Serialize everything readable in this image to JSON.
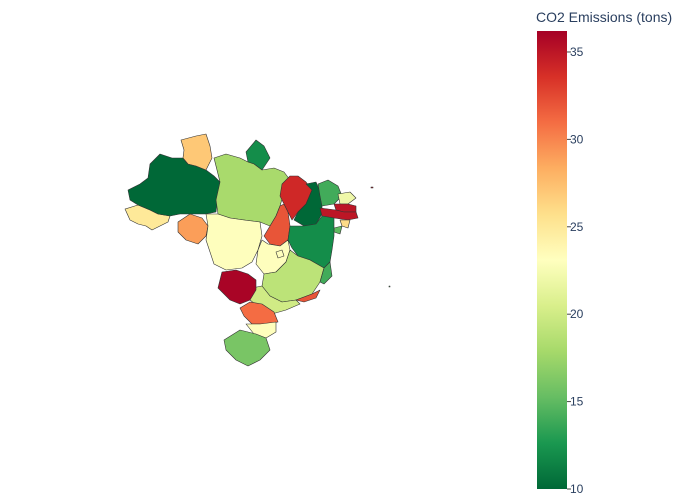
{
  "chart_data": {
    "type": "choropleth",
    "colorbar": {
      "title": "CO2 Emissions (tons)",
      "range": [
        10,
        36.2
      ],
      "ticks": [
        10,
        15,
        20,
        25,
        30,
        35
      ],
      "colorscale": "RdYlGn reversed",
      "stops": [
        {
          "t": 0.0,
          "color": "#006837"
        },
        {
          "t": 0.1,
          "color": "#1a9850"
        },
        {
          "t": 0.2,
          "color": "#66bd63"
        },
        {
          "t": 0.3,
          "color": "#a6d96a"
        },
        {
          "t": 0.4,
          "color": "#d9ef8b"
        },
        {
          "t": 0.5,
          "color": "#ffffbf"
        },
        {
          "t": 0.6,
          "color": "#fee08b"
        },
        {
          "t": 0.7,
          "color": "#fdae61"
        },
        {
          "t": 0.8,
          "color": "#f46d43"
        },
        {
          "t": 0.9,
          "color": "#d73027"
        },
        {
          "t": 1.0,
          "color": "#a50026"
        }
      ]
    },
    "regions": [
      {
        "id": "AC",
        "value": 25
      },
      {
        "id": "AM",
        "value": 10
      },
      {
        "id": "RR",
        "value": 27
      },
      {
        "id": "AP",
        "value": 12
      },
      {
        "id": "PA",
        "value": 18
      },
      {
        "id": "RO",
        "value": 29
      },
      {
        "id": "MT",
        "value": 23
      },
      {
        "id": "TO",
        "value": 32
      },
      {
        "id": "MA",
        "value": 34
      },
      {
        "id": "PI",
        "value": 10
      },
      {
        "id": "CE",
        "value": 14
      },
      {
        "id": "RN",
        "value": 22
      },
      {
        "id": "PB",
        "value": 35
      },
      {
        "id": "PE",
        "value": 35
      },
      {
        "id": "AL",
        "value": 26
      },
      {
        "id": "SE",
        "value": 15
      },
      {
        "id": "BA",
        "value": 12
      },
      {
        "id": "GO",
        "value": 23
      },
      {
        "id": "DF",
        "value": 23
      },
      {
        "id": "MG",
        "value": 19
      },
      {
        "id": "ES",
        "value": 14
      },
      {
        "id": "RJ",
        "value": 32
      },
      {
        "id": "SP",
        "value": 20
      },
      {
        "id": "MS",
        "value": 36
      },
      {
        "id": "PR",
        "value": 31
      },
      {
        "id": "SC",
        "value": 23
      },
      {
        "id": "RS",
        "value": 16
      }
    ]
  }
}
